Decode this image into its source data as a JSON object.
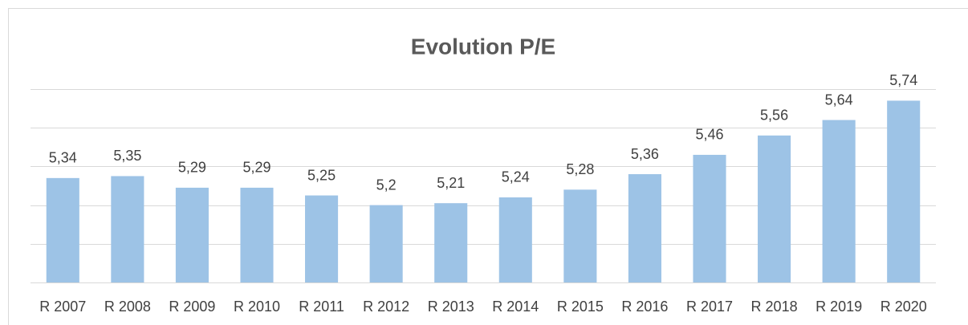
{
  "chart_data": {
    "type": "bar",
    "title": "Evolution P/E",
    "categories": [
      "R 2007",
      "R 2008",
      "R 2009",
      "R 2010",
      "R 2011",
      "R 2012",
      "R 2013",
      "R 2014",
      "R 2015",
      "R 2016",
      "R 2017",
      "R 2018",
      "R 2019",
      "R 2020"
    ],
    "values": [
      5.34,
      5.35,
      5.29,
      5.29,
      5.25,
      5.2,
      5.21,
      5.24,
      5.28,
      5.36,
      5.46,
      5.56,
      5.64,
      5.74
    ],
    "value_labels": [
      "5,34",
      "5,35",
      "5,29",
      "5,29",
      "5,25",
      "5,2",
      "5,21",
      "5,24",
      "5,28",
      "5,36",
      "5,46",
      "5,56",
      "5,64",
      "5,74"
    ],
    "color": "#9dc3e6",
    "ylim": [
      4.8,
      5.8
    ],
    "yticks": [
      4.8,
      5,
      5.2,
      5.4,
      5.6,
      5.8
    ],
    "grid": true
  }
}
